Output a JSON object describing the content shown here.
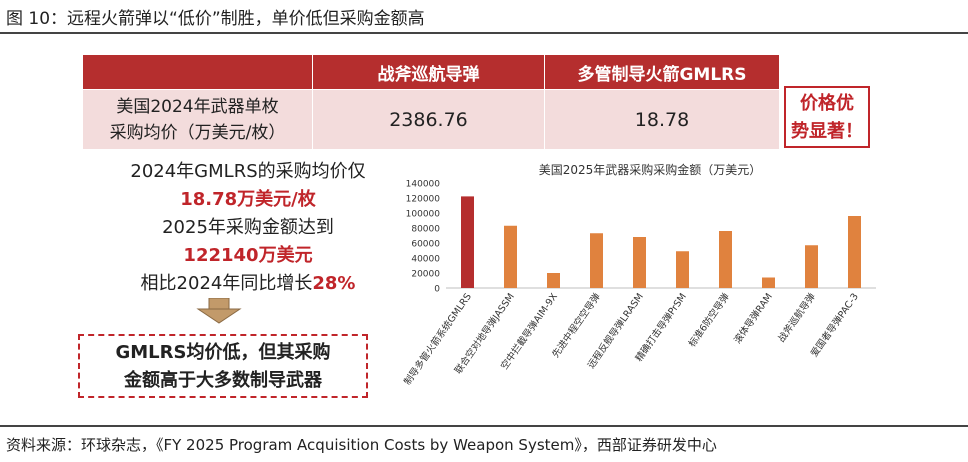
{
  "figure_title": "图 10：远程火箭弹以“低价”制胜，单价低但采购金额高",
  "table": {
    "headers": [
      "战斧巡航导弹",
      "多管制导火箭GMLRS"
    ],
    "row_label_line1": "美国2024年武器单枚",
    "row_label_line2": "采购均价（万美元/枚）",
    "values": [
      "2386.76",
      "18.78"
    ]
  },
  "callout": {
    "line1": "价格优",
    "line2": "势显著！"
  },
  "text_block": {
    "line1": "2024年GMLRS的采购均价仅",
    "line2": "18.78万美元/枚",
    "line3": "2025年采购金额达到",
    "line4": "122140万美元",
    "line5_prefix": "相比2024年同比增长",
    "line5_highlight": "28%"
  },
  "conclusion": {
    "line1": "GMLRS均价低，但其采购",
    "line2": "金额高于大多数制导武器"
  },
  "chart_data": {
    "type": "bar",
    "title": "美国2025年武器采购采购金额（万美元）",
    "categories": [
      "制导多管火箭系统GMLRS",
      "联合空对地导弹JASSM",
      "空中拦截导弹AIM-9X",
      "先进中程空空导弹",
      "远程反舰导弹LRASM",
      "精确打击导弹PrSM",
      "标准6防空导弹",
      "滚体导弹RAM",
      "战斧巡航导弹",
      "爱国者导弹PAC-3"
    ],
    "values": [
      122140,
      83000,
      20000,
      73000,
      68000,
      49000,
      76000,
      14000,
      57000,
      96000
    ],
    "ylim": [
      0,
      140000
    ],
    "yticks": [
      "0",
      "20000",
      "40000",
      "60000",
      "80000",
      "100000",
      "120000",
      "140000"
    ],
    "highlight_color": "#b52e2e",
    "bar_color": "#e0823e",
    "grid": false
  },
  "source": "资料来源：环球杂志，《FY 2025 Program Acquisition Costs by Weapon System》，西部证券研发中心"
}
